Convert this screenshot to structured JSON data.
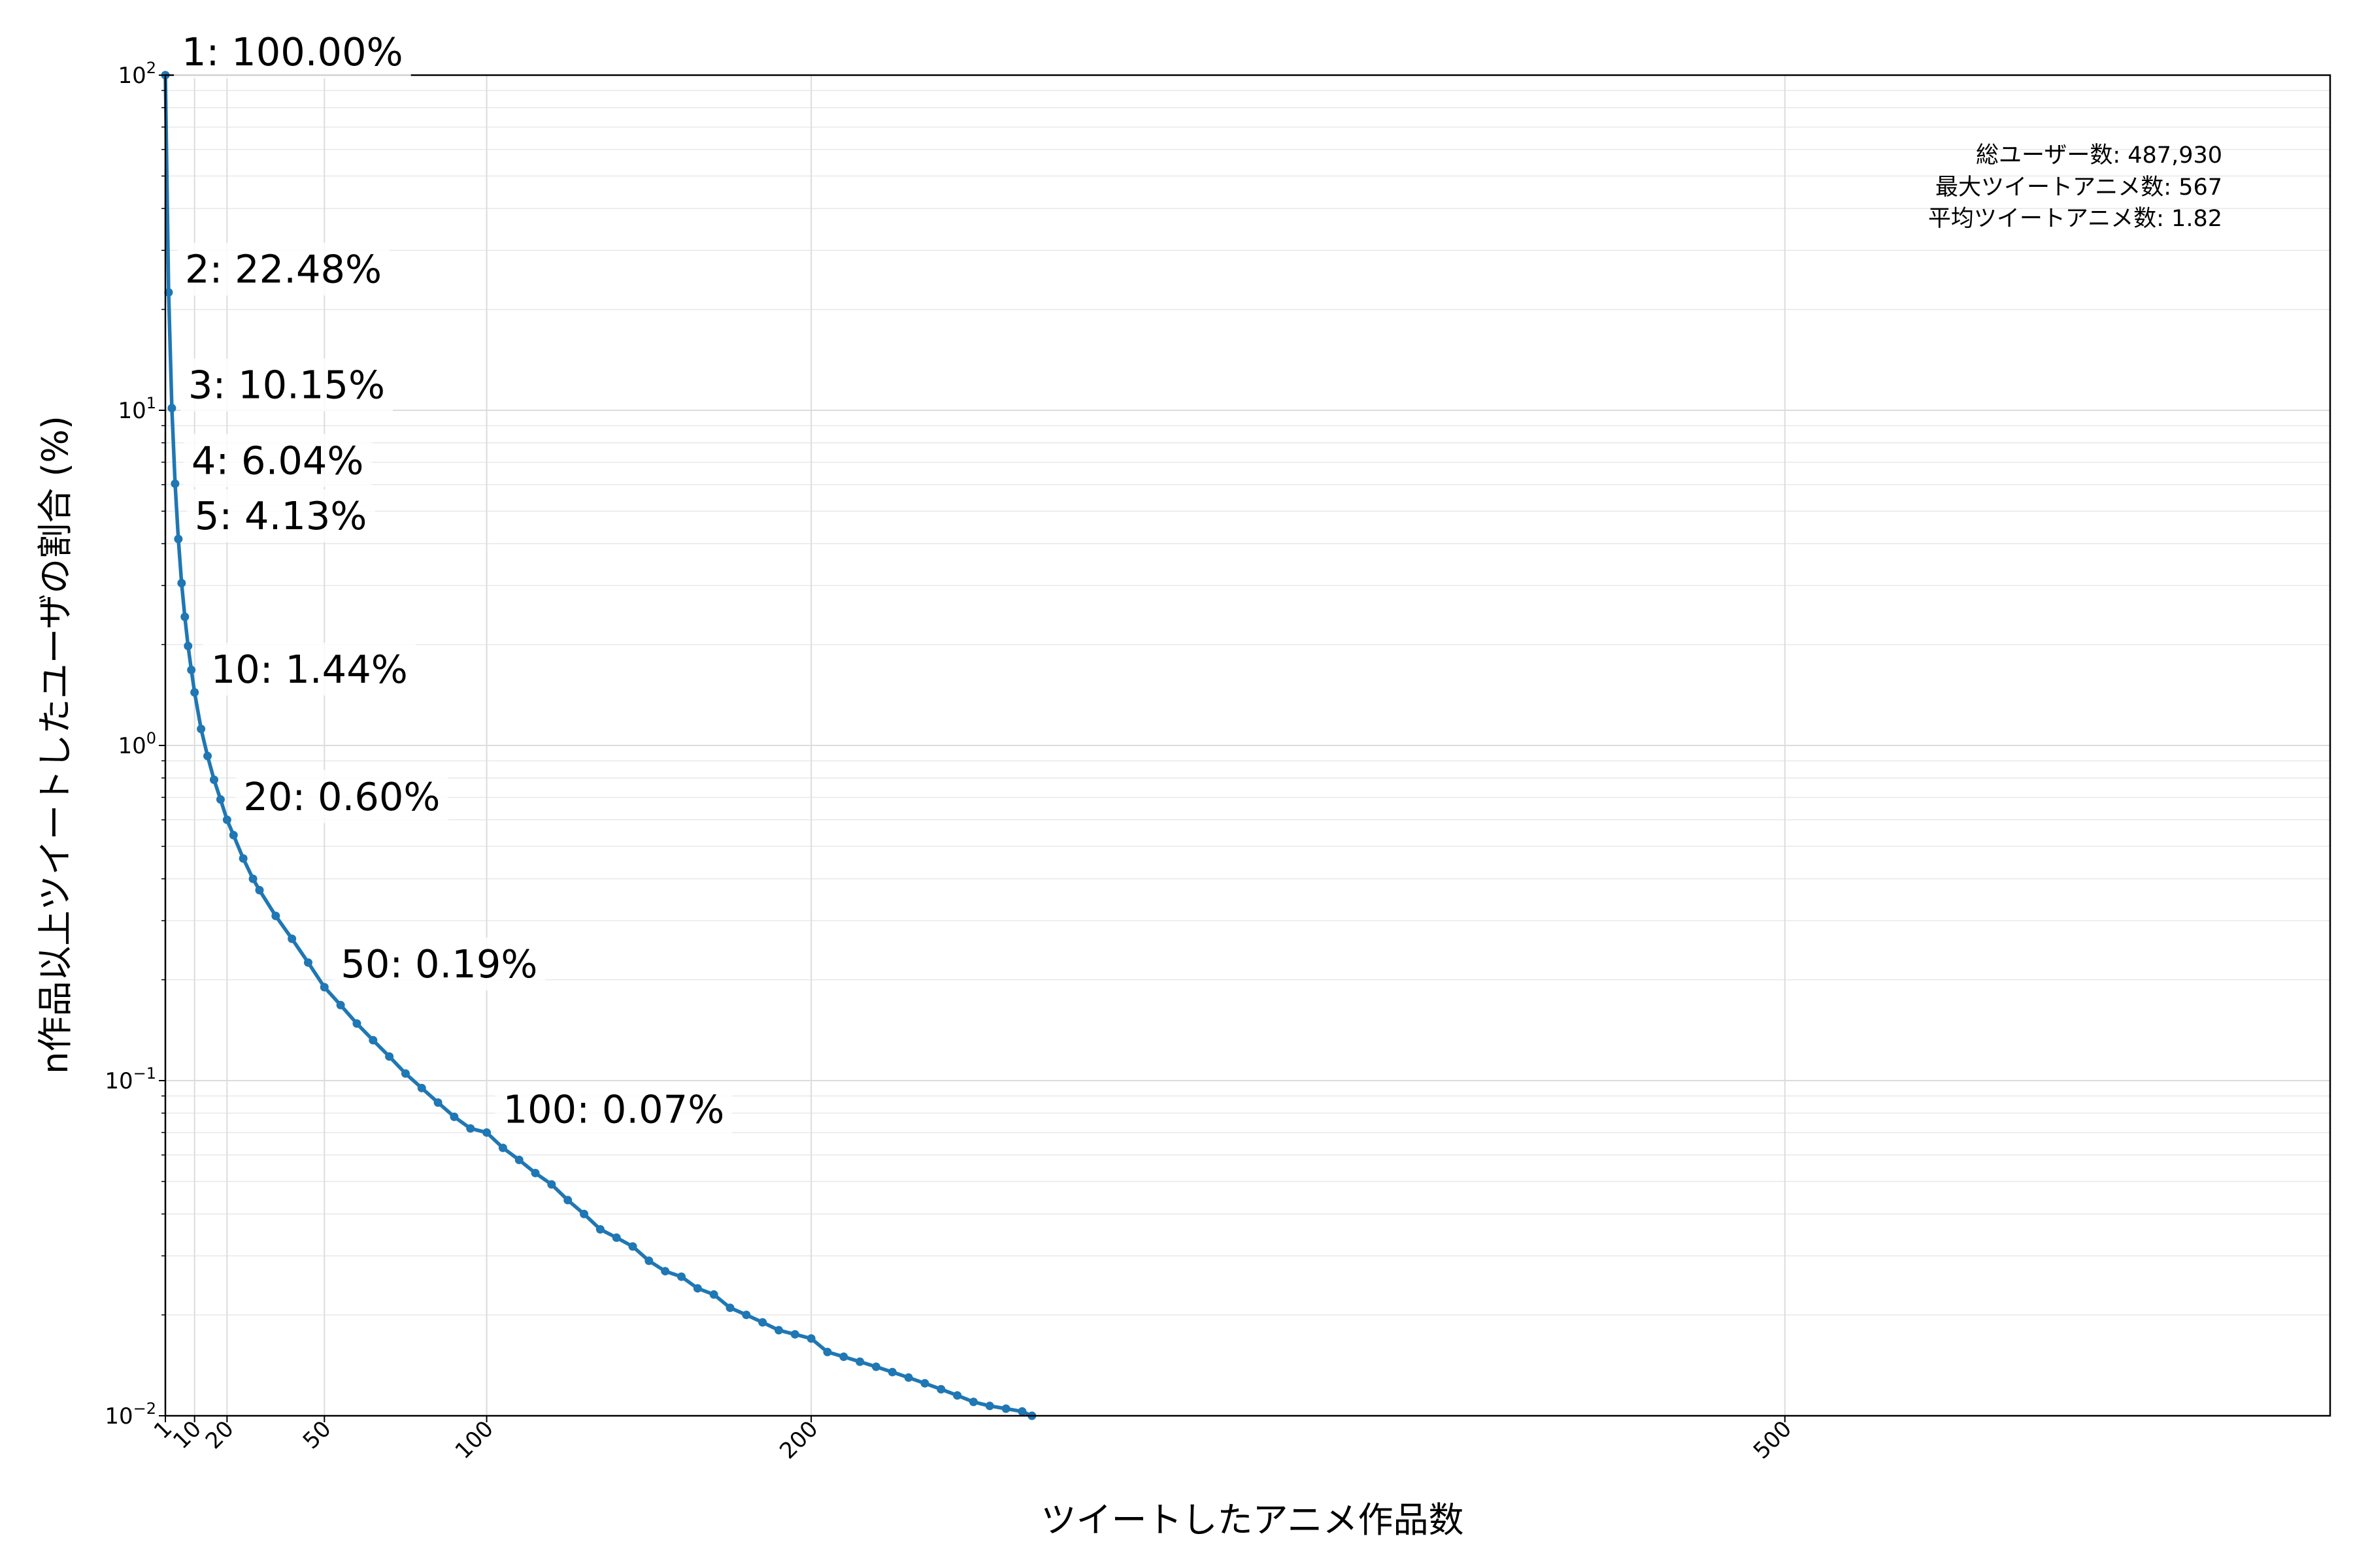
{
  "chart_data": {
    "type": "line",
    "xlabel": "ツイートしたアニメ作品数",
    "ylabel": "n作品以上ツイートしたユーザの割合 (%)",
    "x_scale": "linear",
    "y_scale": "log",
    "xlim": [
      1,
      668
    ],
    "ylim": [
      0.01,
      100
    ],
    "x_ticks": [
      1,
      10,
      20,
      50,
      100,
      200,
      500
    ],
    "y_ticks": [
      {
        "value": 100,
        "base": "10",
        "exp": "2"
      },
      {
        "value": 10,
        "base": "10",
        "exp": "1"
      },
      {
        "value": 1,
        "base": "10",
        "exp": "0"
      },
      {
        "value": 0.1,
        "base": "10",
        "exp": "−1"
      },
      {
        "value": 0.01,
        "base": "10",
        "exp": "−2"
      }
    ],
    "grid": true,
    "color": "#1f77b4",
    "series": [
      {
        "points": [
          [
            1,
            100.0
          ],
          [
            2,
            22.48
          ],
          [
            3,
            10.15
          ],
          [
            4,
            6.04
          ],
          [
            5,
            4.13
          ],
          [
            6,
            3.05
          ],
          [
            7,
            2.42
          ],
          [
            8,
            1.98
          ],
          [
            9,
            1.68
          ],
          [
            10,
            1.44
          ],
          [
            12,
            1.12
          ],
          [
            14,
            0.93
          ],
          [
            16,
            0.79
          ],
          [
            18,
            0.69
          ],
          [
            20,
            0.6
          ],
          [
            22,
            0.54
          ],
          [
            25,
            0.46
          ],
          [
            28,
            0.4
          ],
          [
            30,
            0.37
          ],
          [
            35,
            0.31
          ],
          [
            40,
            0.265
          ],
          [
            45,
            0.225
          ],
          [
            50,
            0.19
          ],
          [
            55,
            0.168
          ],
          [
            60,
            0.148
          ],
          [
            65,
            0.132
          ],
          [
            70,
            0.118
          ],
          [
            75,
            0.105
          ],
          [
            80,
            0.095
          ],
          [
            85,
            0.086
          ],
          [
            90,
            0.078
          ],
          [
            95,
            0.072
          ],
          [
            100,
            0.07
          ],
          [
            105,
            0.063
          ],
          [
            110,
            0.058
          ],
          [
            115,
            0.053
          ],
          [
            120,
            0.049
          ],
          [
            125,
            0.044
          ],
          [
            130,
            0.04
          ],
          [
            135,
            0.036
          ],
          [
            140,
            0.034
          ],
          [
            145,
            0.032
          ],
          [
            150,
            0.029
          ],
          [
            155,
            0.027
          ],
          [
            160,
            0.026
          ],
          [
            165,
            0.024
          ],
          [
            170,
            0.023
          ],
          [
            175,
            0.021
          ],
          [
            180,
            0.02
          ],
          [
            185,
            0.019
          ],
          [
            190,
            0.018
          ],
          [
            195,
            0.0175
          ],
          [
            200,
            0.017
          ],
          [
            205,
            0.0155
          ],
          [
            210,
            0.015
          ],
          [
            215,
            0.0145
          ],
          [
            220,
            0.014
          ],
          [
            225,
            0.0135
          ],
          [
            230,
            0.013
          ],
          [
            235,
            0.0125
          ],
          [
            240,
            0.012
          ],
          [
            245,
            0.0115
          ],
          [
            250,
            0.011
          ],
          [
            255,
            0.0107
          ],
          [
            260,
            0.0105
          ],
          [
            265,
            0.0103
          ],
          [
            268,
            0.01
          ]
        ]
      }
    ],
    "annotations": [
      {
        "x": 1,
        "y": 100.0,
        "text": "1: 100.00%"
      },
      {
        "x": 2,
        "y": 22.48,
        "text": "2: 22.48%"
      },
      {
        "x": 3,
        "y": 10.15,
        "text": "3: 10.15%"
      },
      {
        "x": 4,
        "y": 6.04,
        "text": "4: 6.04%"
      },
      {
        "x": 5,
        "y": 4.13,
        "text": "5: 4.13%"
      },
      {
        "x": 10,
        "y": 1.44,
        "text": "10: 1.44%"
      },
      {
        "x": 20,
        "y": 0.6,
        "text": "20: 0.60%"
      },
      {
        "x": 50,
        "y": 0.19,
        "text": "50: 0.19%"
      },
      {
        "x": 100,
        "y": 0.07,
        "text": "100: 0.07%"
      }
    ],
    "stats": [
      "総ユーザー数: 487,930",
      "最大ツイートアニメ数: 567",
      "平均ツイートアニメ数: 1.82"
    ]
  }
}
